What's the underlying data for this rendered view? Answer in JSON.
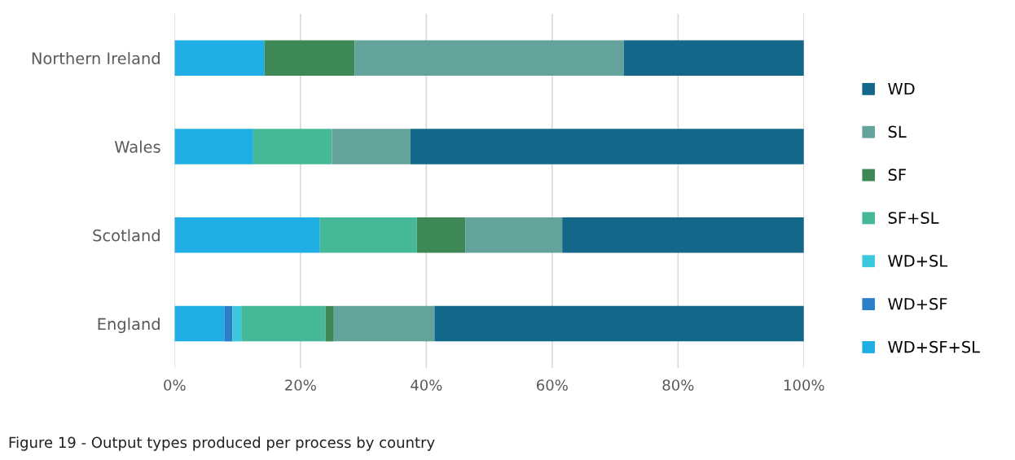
{
  "chart_data": {
    "type": "bar",
    "orientation": "horizontal",
    "stacked": true,
    "categories": [
      "Northern Ireland",
      "Wales",
      "Scotland",
      "England"
    ],
    "series": [
      {
        "name": "WD+SF+SL",
        "color": "#1eaee4",
        "values": [
          14.3,
          12.5,
          23.1,
          7.9
        ]
      },
      {
        "name": "WD+SF",
        "color": "#2a7fc8",
        "values": [
          0,
          0,
          0,
          1.3
        ]
      },
      {
        "name": "WD+SL",
        "color": "#3cc8dc",
        "values": [
          0,
          0,
          0,
          1.4
        ]
      },
      {
        "name": "SF+SL",
        "color": "#45b997",
        "values": [
          0,
          12.5,
          15.4,
          13.4
        ]
      },
      {
        "name": "SF",
        "color": "#3e8756",
        "values": [
          14.3,
          0,
          7.7,
          1.3
        ]
      },
      {
        "name": "SL",
        "color": "#64a29c",
        "values": [
          42.8,
          12.5,
          15.4,
          16.0
        ]
      },
      {
        "name": "WD",
        "color": "#13678a",
        "values": [
          28.6,
          62.5,
          38.4,
          58.7
        ]
      }
    ],
    "xlim": [
      0,
      100
    ],
    "xticks": [
      {
        "value": 0,
        "label": "0%"
      },
      {
        "value": 20,
        "label": "20%"
      },
      {
        "value": 40,
        "label": "40%"
      },
      {
        "value": 60,
        "label": "60%"
      },
      {
        "value": 80,
        "label": "80%"
      },
      {
        "value": 100,
        "label": "100%"
      }
    ],
    "grid": "x",
    "legend": "right",
    "annotations": [
      "Figure 19 - Output types produced per process by country"
    ]
  }
}
